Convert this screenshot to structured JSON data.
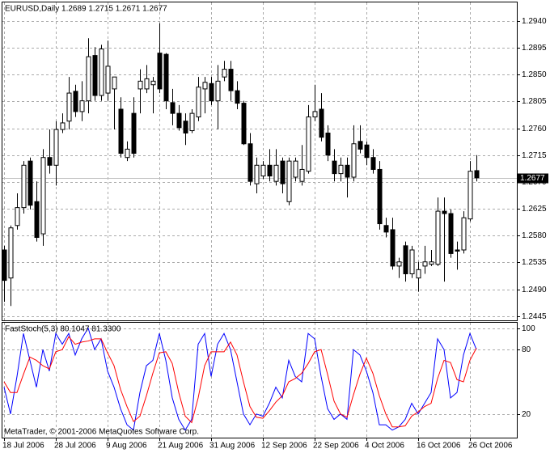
{
  "chart_data": [
    {
      "type": "candlestick",
      "title": "EURUSD,Daily  1.2689 1.2715 1.2671 1.2677",
      "categories": [
        "18 Jul 2006",
        null,
        null,
        null,
        null,
        null,
        null,
        null,
        "28 Jul 2006",
        null,
        null,
        null,
        null,
        null,
        null,
        null,
        "9 Aug 2006",
        null,
        null,
        null,
        null,
        null,
        null,
        null,
        "21 Aug 2006",
        null,
        null,
        null,
        null,
        null,
        null,
        null,
        "31 Aug 2006",
        null,
        null,
        null,
        null,
        null,
        null,
        null,
        "12 Sep 2006",
        null,
        null,
        null,
        null,
        null,
        null,
        null,
        "22 Sep 2006",
        null,
        null,
        null,
        null,
        null,
        null,
        null,
        "4 Oct 2006",
        null,
        null,
        null,
        null,
        null,
        null,
        null,
        "16 Oct 2006",
        null,
        null,
        null,
        null,
        null,
        null,
        null,
        "26 Oct 2006",
        null
      ],
      "open": [
        1.2556,
        1.2509,
        1.2597,
        1.2627,
        1.2705,
        1.2637,
        1.2583,
        1.2711,
        1.2698,
        1.2758,
        1.2772,
        1.2822,
        1.2788,
        1.2806,
        1.2882,
        1.2815,
        1.2819,
        1.2826,
        1.2792,
        1.2711,
        1.2785,
        1.2826,
        1.2826,
        1.2833,
        1.2886,
        1.2884,
        1.2803,
        1.2785,
        1.2772,
        1.2756,
        1.2779,
        1.2826,
        1.2835,
        1.2806,
        1.2846,
        1.2859,
        1.2823,
        1.2802,
        1.2734,
        1.2667,
        1.268,
        1.2698,
        1.2671,
        1.2705,
        1.2637,
        1.2678,
        1.2671,
        1.2688,
        1.2779,
        1.2792,
        1.2752,
        1.2705,
        1.2684,
        1.2698,
        1.2678,
        1.2738,
        1.2732,
        1.2711,
        1.2691,
        1.2597,
        1.259,
        1.2529,
        1.2563,
        1.2516,
        1.2509,
        1.2529,
        1.2532,
        1.2532,
        1.2621,
        1.2617,
        1.2556,
        1.2556,
        1.2608,
        1.2689
      ],
      "high": [
        1.2563,
        1.2597,
        1.2651,
        1.2705,
        1.2711,
        1.2671,
        1.2725,
        1.2758,
        1.2772,
        1.2785,
        1.2846,
        1.2833,
        1.2839,
        1.2911,
        1.2896,
        1.29,
        1.2907,
        1.2846,
        1.2812,
        1.2738,
        1.2812,
        1.2859,
        1.2866,
        1.2846,
        1.2936,
        1.2886,
        1.2826,
        1.2799,
        1.2785,
        1.2792,
        1.2846,
        1.2846,
        1.2846,
        1.2866,
        1.2873,
        1.2873,
        1.2839,
        1.2806,
        1.2752,
        1.2711,
        1.2705,
        1.2725,
        1.2725,
        1.2711,
        1.2711,
        1.2711,
        1.2732,
        1.2799,
        1.2833,
        1.2819,
        1.2765,
        1.2725,
        1.2711,
        1.2711,
        1.2765,
        1.2765,
        1.2738,
        1.2725,
        1.2705,
        1.261,
        1.261,
        1.2543,
        1.257,
        1.2563,
        1.2536,
        1.2563,
        1.2556,
        1.2644,
        1.2644,
        1.2624,
        1.257,
        1.2621,
        1.2705,
        1.2715
      ],
      "low": [
        1.2469,
        1.2462,
        1.259,
        1.2617,
        1.2624,
        1.257,
        1.2563,
        1.2684,
        1.2664,
        1.2752,
        1.2758,
        1.2779,
        1.2772,
        1.2785,
        1.2806,
        1.2806,
        1.2806,
        1.2758,
        1.2711,
        1.2705,
        1.2711,
        1.2785,
        1.2819,
        1.2785,
        1.2819,
        1.2792,
        1.2765,
        1.2756,
        1.2732,
        1.2752,
        1.2772,
        1.2785,
        1.2799,
        1.2758,
        1.2839,
        1.2806,
        1.2792,
        1.2732,
        1.2664,
        1.2651,
        1.2675,
        1.2671,
        1.2664,
        1.2651,
        1.2631,
        1.2671,
        1.2664,
        1.2684,
        1.2772,
        1.2738,
        1.2705,
        1.2671,
        1.2671,
        1.2644,
        1.2671,
        1.2718,
        1.2698,
        1.2684,
        1.259,
        1.2577,
        1.2523,
        1.2509,
        1.2503,
        1.2509,
        1.2486,
        1.2516,
        1.2529,
        1.2529,
        1.2503,
        1.2543,
        1.2523,
        1.255,
        1.2604,
        1.2671
      ],
      "close": [
        1.2505,
        1.2593,
        1.2627,
        1.2698,
        1.2631,
        1.2577,
        1.2711,
        1.2698,
        1.2758,
        1.2769,
        1.2819,
        1.2788,
        1.2806,
        1.288,
        1.2815,
        1.2893,
        1.2864,
        1.2846,
        1.2718,
        1.2725,
        1.2718,
        1.2839,
        1.2843,
        1.2839,
        1.2826,
        1.2806,
        1.2785,
        1.2761,
        1.2752,
        1.2785,
        1.2829,
        1.2837,
        1.2806,
        1.2839,
        1.2859,
        1.2823,
        1.2802,
        1.2734,
        1.2671,
        1.2698,
        1.2698,
        1.268,
        1.2698,
        1.2667,
        1.2705,
        1.2705,
        1.2691,
        1.2779,
        1.2788,
        1.2745,
        1.2715,
        1.2684,
        1.2698,
        1.2678,
        1.2734,
        1.2725,
        1.2711,
        1.2691,
        1.26,
        1.2586,
        1.2529,
        1.2536,
        1.2516,
        1.2556,
        1.2523,
        1.2536,
        1.2536,
        1.2621,
        1.2617,
        1.255,
        1.2554,
        1.261,
        1.2688,
        1.2677
      ],
      "ylim": [
        1.2438,
        1.2971
      ],
      "yticks": [
        {
          "value": 1.2445,
          "label": "1.2445"
        },
        {
          "value": 1.249,
          "label": "1.2490"
        },
        {
          "value": 1.2535,
          "label": "1.2535"
        },
        {
          "value": 1.258,
          "label": "1.2580"
        },
        {
          "value": 1.2625,
          "label": "1.2625"
        },
        {
          "value": 1.267,
          "label": "1.2670"
        },
        {
          "value": 1.2715,
          "label": "1.2715"
        },
        {
          "value": 1.276,
          "label": "1.2760"
        },
        {
          "value": 1.2805,
          "label": "1.2805"
        },
        {
          "value": 1.285,
          "label": "1.2850"
        },
        {
          "value": 1.2895,
          "label": "1.2895"
        },
        {
          "value": 1.294,
          "label": "1.2940"
        }
      ],
      "grid": true
    },
    {
      "type": "line",
      "title": "FastStoch(5,3) 80.1047 81.3300",
      "series": [
        {
          "color": "#0000ff",
          "values": [
            45,
            20,
            55,
            95,
            70,
            45,
            80,
            60,
            95,
            85,
            95,
            75,
            90,
            100,
            80,
            90,
            60,
            45,
            25,
            10,
            5,
            40,
            65,
            70,
            95,
            70,
            35,
            15,
            5,
            15,
            85,
            95,
            55,
            85,
            95,
            80,
            50,
            20,
            10,
            20,
            18,
            30,
            45,
            35,
            70,
            55,
            50,
            95,
            90,
            55,
            25,
            15,
            20,
            15,
            80,
            75,
            60,
            40,
            10,
            10,
            5,
            8,
            15,
            30,
            20,
            30,
            40,
            90,
            80,
            35,
            40,
            75,
            95,
            80.1047
          ]
        },
        {
          "color": "#ff0000",
          "values": [
            50,
            40,
            40,
            57,
            73,
            70,
            65,
            62,
            78,
            80,
            92,
            85,
            87,
            88,
            90,
            90,
            77,
            65,
            43,
            27,
            13,
            18,
            37,
            58,
            77,
            78,
            67,
            40,
            18,
            12,
            35,
            65,
            78,
            78,
            78,
            87,
            75,
            50,
            27,
            17,
            16,
            23,
            31,
            37,
            50,
            53,
            58,
            67,
            78,
            80,
            57,
            32,
            20,
            17,
            38,
            57,
            72,
            58,
            37,
            20,
            8,
            8,
            9,
            18,
            22,
            27,
            30,
            53,
            70,
            68,
            52,
            50,
            70,
            81.33
          ]
        }
      ],
      "ylim": [
        -2,
        105
      ],
      "yticks": [
        20,
        80,
        100
      ],
      "grid": true
    }
  ],
  "copyright": "MetaTrader, © 2001-2006 MetaQuotes Software Corp."
}
